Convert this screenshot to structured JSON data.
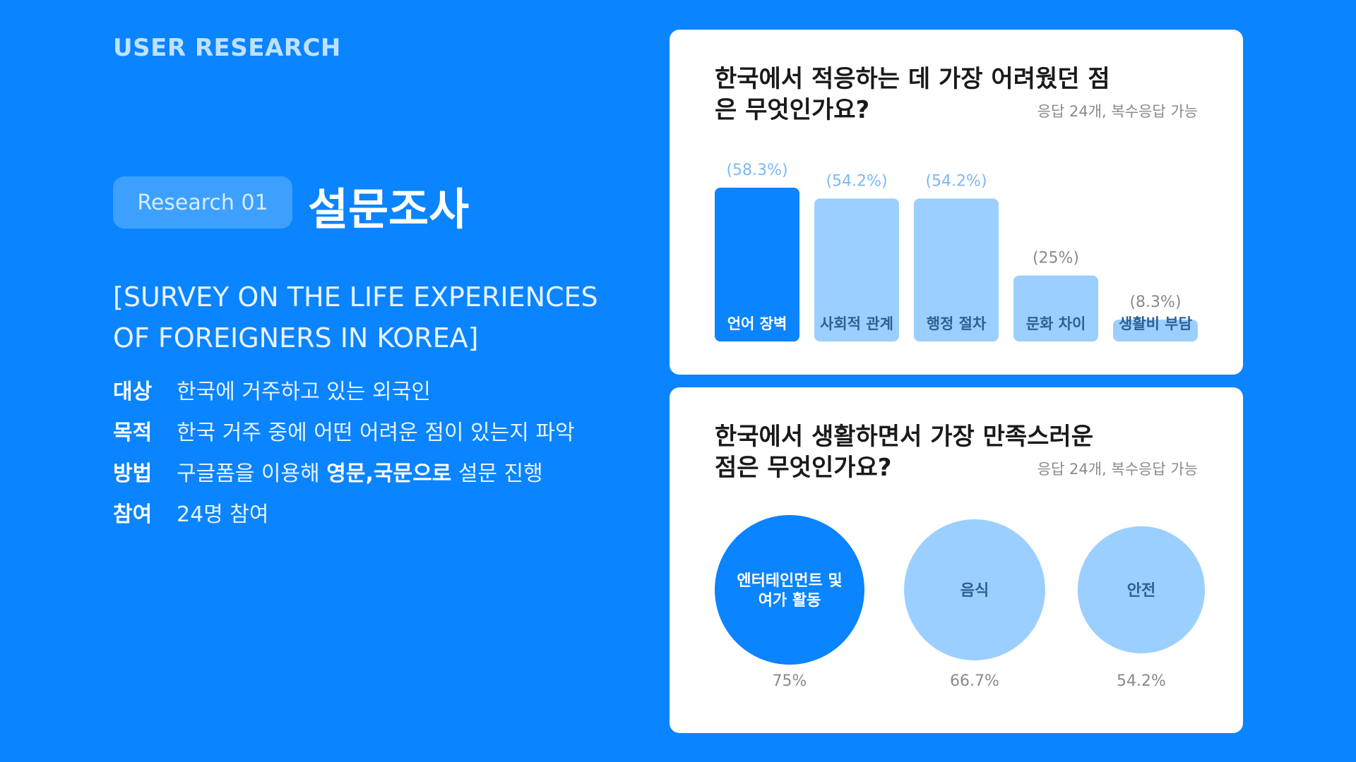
{
  "header": {
    "kicker": "USER RESEARCH"
  },
  "section": {
    "badge": "Research 01",
    "title": "설문조사",
    "subtitle": "[SURVEY ON THE LIFE EXPERIENCES OF FOREIGNERS IN KOREA]"
  },
  "info": {
    "target_label": "대상",
    "target_value": "한국에 거주하고 있는 외국인",
    "purpose_label": "목적",
    "purpose_value": "한국 거주 중에 어떤 어려운 점이 있는지 파악",
    "method_label": "방법",
    "method_pre": "구글폼을 이용해 ",
    "method_bold": "영문,국문으로",
    "method_post": " 설문 진행",
    "participation_label": "참여",
    "participation_value": "24명 참여"
  },
  "colors": {
    "background": "#0A84FF",
    "highlight": "#0A84FF",
    "muted": "#9BCFFF",
    "muted_label": "#2F5F93",
    "value_label": "#7DB9F2"
  },
  "chart_data": [
    {
      "type": "bar",
      "title": "한국에서 적응하는 데 가장 어려웠던 점은 무엇인가요?",
      "note": "응답 24개, 복수응답 가능",
      "categories": [
        "언어 장벽",
        "사회적 관계",
        "행정 절차",
        "문화 차이",
        "생활비 부담"
      ],
      "values": [
        58.3,
        54.2,
        54.2,
        25,
        8.3
      ],
      "value_labels": [
        "(58.3%)",
        "(54.2%)",
        "(54.2%)",
        "(25%)",
        "(8.3%)"
      ],
      "highlight_index": 0,
      "xlabel": "",
      "ylabel": "",
      "ylim": [
        0,
        58.3
      ]
    },
    {
      "type": "bubble",
      "title": "한국에서 생활하면서 가장 만족스러운 점은 무엇인가요?",
      "note": "응답 24개, 복수응답 가능",
      "categories": [
        "엔터테인먼트 및 여가 활동",
        "음식",
        "안전"
      ],
      "values": [
        75,
        66.7,
        54.2
      ],
      "value_labels": [
        "75%",
        "66.7%",
        "54.2%"
      ],
      "highlight_index": 0
    }
  ]
}
